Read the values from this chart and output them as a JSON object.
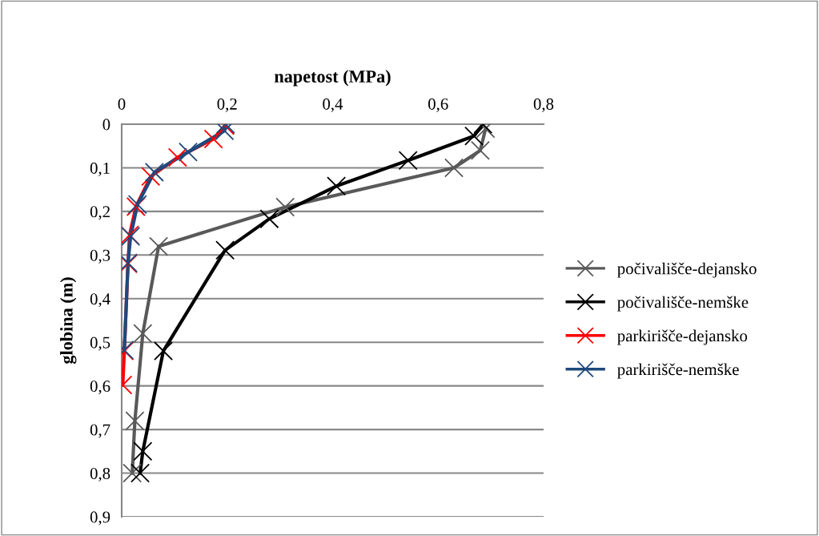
{
  "chart_data": {
    "type": "line",
    "xlabel": "napetost (MPa)",
    "ylabel": "globina (m)",
    "marker": "cross",
    "grid": "y",
    "legend": "right",
    "xlim": [
      0,
      0.8
    ],
    "ylim": [
      0.9,
      0
    ],
    "xticks": [
      0,
      {
        "value": 0.2,
        "label": "0,2"
      },
      {
        "value": 0.4,
        "label": "0,4"
      },
      {
        "value": 0.6,
        "label": "0,6"
      },
      {
        "value": 0.8,
        "label": "0,8"
      }
    ],
    "yticks": [
      0,
      {
        "value": 0.1,
        "label": "0,1"
      },
      {
        "value": 0.2,
        "label": "0,2"
      },
      {
        "value": 0.3,
        "label": "0,3"
      },
      {
        "value": 0.4,
        "label": "0,4"
      },
      {
        "value": 0.5,
        "label": "0,5"
      },
      {
        "value": 0.6,
        "label": "0,6"
      },
      {
        "value": 0.7,
        "label": "0,7"
      },
      {
        "value": 0.8,
        "label": "0,8"
      },
      {
        "value": 0.9,
        "label": "0,9"
      }
    ],
    "series": [
      {
        "name": "počivališče-dejansko",
        "color": "#595959",
        "x": [
          0.69,
          0.68,
          0.63,
          0.31,
          0.07,
          0.04,
          0.025,
          0.02
        ],
        "values": [
          0.01,
          0.06,
          0.1,
          0.19,
          0.28,
          0.48,
          0.68,
          0.8
        ]
      },
      {
        "name": "počivališče-nemške",
        "color": "#000000",
        "x": [
          0.685,
          0.668,
          0.543,
          0.407,
          0.28,
          0.196,
          0.079,
          0.04,
          0.035
        ],
        "values": [
          0.0,
          0.027,
          0.083,
          0.142,
          0.217,
          0.289,
          0.52,
          0.75,
          0.8
        ]
      },
      {
        "name": "parkirišče-dejansko",
        "color": "#ff0000",
        "x": [
          0.196,
          0.174,
          0.106,
          0.055,
          0.027,
          0.015,
          0.012,
          0.005,
          0.002
        ],
        "values": [
          0.003,
          0.034,
          0.076,
          0.12,
          0.189,
          0.254,
          0.32,
          0.52,
          0.598
        ]
      },
      {
        "name": "parkirišče-nemške",
        "color": "#1f497d",
        "x": [
          0.197,
          0.195,
          0.126,
          0.062,
          0.03,
          0.017,
          0.012,
          0.005
        ],
        "values": [
          0.0,
          0.015,
          0.064,
          0.11,
          0.184,
          0.257,
          0.318,
          0.518
        ]
      }
    ]
  }
}
